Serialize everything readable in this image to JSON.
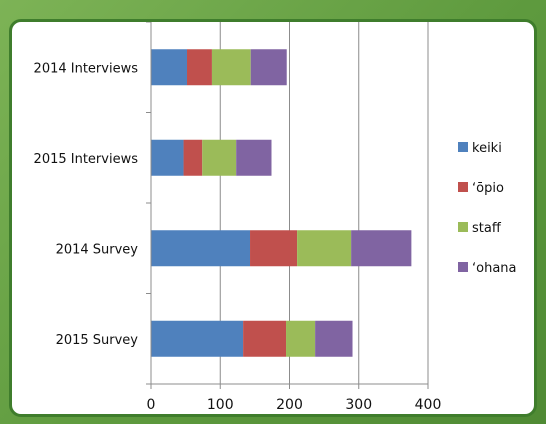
{
  "chart_data": {
    "type": "bar",
    "orientation": "horizontal",
    "stacked": true,
    "categories": [
      "2014 Interviews",
      "2015 Interviews",
      "2014 Survey",
      "2015 Survey"
    ],
    "series": [
      {
        "name": "keiki",
        "color": "#4f81bd",
        "values": [
          52,
          47,
          143,
          133
        ]
      },
      {
        "name": "ʻōpio",
        "color": "#c0504d",
        "values": [
          36,
          27,
          68,
          62
        ]
      },
      {
        "name": "staff",
        "color": "#9bbb59",
        "values": [
          56,
          49,
          78,
          42
        ]
      },
      {
        "name": "ʻohana",
        "color": "#8064a2",
        "values": [
          52,
          51,
          87,
          54
        ]
      }
    ],
    "x_ticks": [
      "0",
      "100",
      "200",
      "300",
      "400"
    ],
    "xlim": [
      0,
      400
    ],
    "grid": "vertical",
    "legend_position": "right",
    "title": "",
    "xlabel": "",
    "ylabel": ""
  }
}
